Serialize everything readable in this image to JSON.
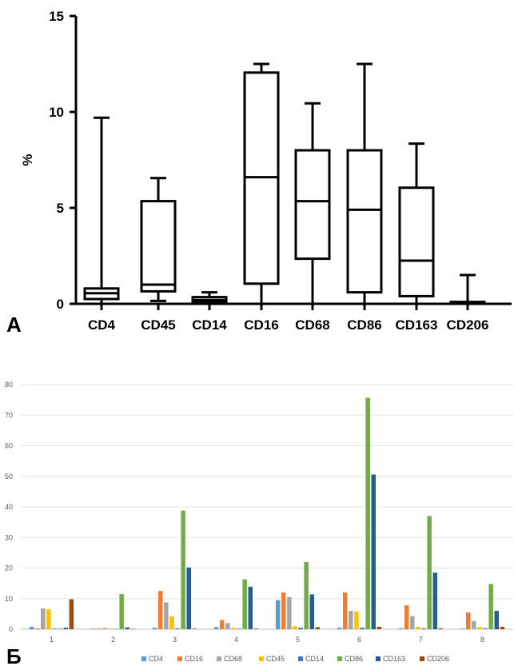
{
  "panel_a_label": "А",
  "panel_b_label": "Б",
  "chart_data": [
    {
      "type": "box",
      "ylabel": "%",
      "ylim": [
        0,
        15
      ],
      "yticks": [
        "0",
        "5",
        "10",
        "15"
      ],
      "categories": [
        "CD4",
        "CD45",
        "CD14",
        "CD16",
        "CD68",
        "CD86",
        "CD163",
        "CD206"
      ],
      "boxes": [
        {
          "min": 0.0,
          "q1": 0.25,
          "median": 0.55,
          "q3": 0.8,
          "max": 9.7
        },
        {
          "min": 0.15,
          "q1": 0.65,
          "median": 1.0,
          "q3": 5.35,
          "max": 6.55
        },
        {
          "min": 0.0,
          "q1": 0.1,
          "median": 0.2,
          "q3": 0.35,
          "max": 0.6
        },
        {
          "min": 0.0,
          "q1": 1.05,
          "median": 6.6,
          "q3": 12.05,
          "max": 12.5
        },
        {
          "min": 0.0,
          "q1": 2.35,
          "median": 5.35,
          "q3": 8.0,
          "max": 10.45
        },
        {
          "min": 0.0,
          "q1": 0.6,
          "median": 4.9,
          "q3": 8.0,
          "max": 12.5
        },
        {
          "min": 0.0,
          "q1": 0.4,
          "median": 2.25,
          "q3": 6.05,
          "max": 8.35
        },
        {
          "min": 0.0,
          "q1": 0.0,
          "median": 0.05,
          "q3": 0.1,
          "max": 1.5
        }
      ],
      "grid": false
    },
    {
      "type": "bar",
      "ylim": [
        0,
        80
      ],
      "yticks": [
        "0",
        "10",
        "20",
        "30",
        "40",
        "50",
        "60",
        "70",
        "80"
      ],
      "categories": [
        "1",
        "2",
        "3",
        "4",
        "5",
        "6",
        "7",
        "8"
      ],
      "legend_position": "bottom",
      "grid": true,
      "series": [
        {
          "name": "CD4",
          "color": "#5b9bd5",
          "values": [
            0.8,
            0.2,
            0.5,
            0.7,
            9.5,
            0.5,
            0.3,
            0.2
          ]
        },
        {
          "name": "CD16",
          "color": "#ed7d31",
          "values": [
            0.3,
            0.2,
            12.5,
            3.0,
            12.0,
            12.0,
            7.8,
            5.5
          ]
        },
        {
          "name": "CD68",
          "color": "#a5a5a5",
          "values": [
            6.8,
            0.4,
            8.8,
            2.0,
            10.5,
            6.0,
            4.3,
            2.7
          ]
        },
        {
          "name": "CD45",
          "color": "#ffc000",
          "values": [
            6.5,
            0.2,
            4.2,
            0.5,
            1.0,
            5.8,
            0.8,
            0.8
          ]
        },
        {
          "name": "CD14",
          "color": "#4472c4",
          "values": [
            0.2,
            0.1,
            0.3,
            0.2,
            0.5,
            0.5,
            0.3,
            0.3
          ]
        },
        {
          "name": "CD86",
          "color": "#70ad47",
          "values": [
            0.2,
            11.5,
            38.8,
            16.3,
            22.0,
            75.7,
            37.0,
            14.8
          ]
        },
        {
          "name": "CD163",
          "color": "#255e91",
          "values": [
            0.5,
            0.6,
            20.2,
            13.9,
            11.4,
            50.6,
            18.5,
            6.0
          ]
        },
        {
          "name": "CD206",
          "color": "#9e480e",
          "values": [
            9.8,
            0.1,
            0.2,
            0.2,
            0.7,
            0.8,
            0.3,
            0.8
          ]
        }
      ]
    }
  ]
}
